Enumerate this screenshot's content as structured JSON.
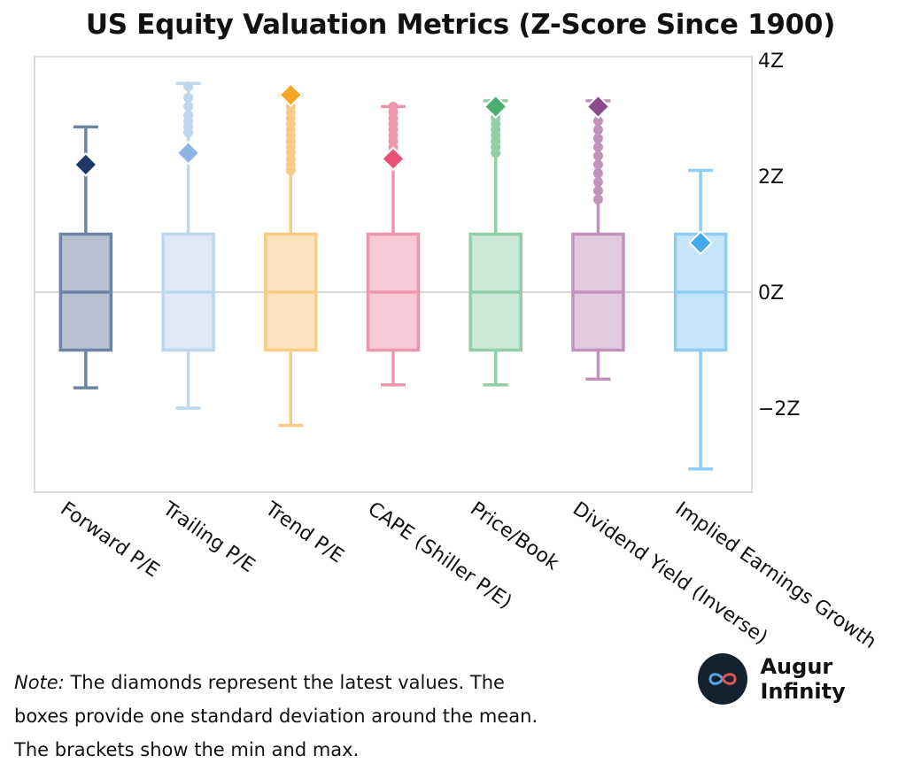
{
  "chart_data": {
    "type": "box",
    "title": "US Equity Valuation Metrics (Z-Score Since 1900)",
    "ylim": [
      -3.5,
      4
    ],
    "y_ticks": [
      4,
      2,
      0,
      -2
    ],
    "y_tick_labels": [
      "4Z",
      "2Z",
      "0Z",
      "−2Z"
    ],
    "grid": false,
    "zero_line": true,
    "series": [
      {
        "name": "Forward P/E",
        "color": "#6d84a4",
        "fill": "#b6c2d2",
        "diamond_color": "#1c3967",
        "q1": -1,
        "median": 0,
        "q3": 1,
        "min": -1.65,
        "max": 2.85,
        "latest": 2.2,
        "outliers": []
      },
      {
        "name": "Trailing P/E",
        "color": "#bcd7ee",
        "fill": "#dde9f6",
        "diamond_color": "#8cb5e3",
        "q1": -1,
        "median": 0,
        "q3": 1,
        "min": -2.0,
        "max": 3.6,
        "latest": 2.4,
        "outliers": [
          2.75,
          2.85,
          2.95,
          3.05,
          3.2,
          3.35,
          3.55
        ]
      },
      {
        "name": "Trend P/E",
        "color": "#f9cb83",
        "fill": "#fce3bf",
        "diamond_color": "#f5a623",
        "q1": -1,
        "median": 0,
        "q3": 1,
        "min": -2.3,
        "max": 3.4,
        "latest": 3.4,
        "outliers": [
          2.1,
          2.2,
          2.3,
          2.4,
          2.5,
          2.6,
          2.7,
          2.8,
          2.9,
          3.0,
          3.1,
          3.2,
          3.3
        ]
      },
      {
        "name": "CAPE (Shiller P/E)",
        "color": "#ef96af",
        "fill": "#f8c9d6",
        "diamond_color": "#e84f74",
        "q1": -1,
        "median": 0,
        "q3": 1,
        "min": -1.6,
        "max": 3.2,
        "latest": 2.3,
        "outliers": [
          2.5,
          2.6,
          2.7,
          2.8,
          2.9,
          3.0,
          3.1,
          3.2
        ]
      },
      {
        "name": "Price/Book",
        "color": "#92cfa8",
        "fill": "#cbe8d5",
        "diamond_color": "#4baf71",
        "q1": -1,
        "median": 0,
        "q3": 1,
        "min": -1.6,
        "max": 3.3,
        "latest": 3.2,
        "outliers": [
          2.4,
          2.5,
          2.6,
          2.7,
          2.8,
          2.9,
          3.0,
          3.1,
          3.2
        ]
      },
      {
        "name": "Dividend Yield (Inverse)",
        "color": "#c192bd",
        "fill": "#e1c9df",
        "diamond_color": "#8e4a8e",
        "q1": -1,
        "median": 0,
        "q3": 1,
        "min": -1.5,
        "max": 3.3,
        "latest": 3.2,
        "outliers": [
          1.6,
          1.75,
          1.9,
          2.05,
          2.2,
          2.35,
          2.5,
          2.65,
          2.8,
          2.95,
          3.1
        ]
      },
      {
        "name": "Implied Earnings Growth",
        "color": "#8fcdf3",
        "fill": "#c7e5f9",
        "diamond_color": "#45a9ef",
        "q1": -1,
        "median": 0,
        "q3": 1,
        "min": -3.05,
        "max": 2.1,
        "latest": 0.85,
        "outliers": []
      }
    ]
  },
  "note": {
    "lead": "Note:",
    "text": " The diamonds represent the latest values. The boxes provide one standard deviation around the mean. The brackets show the min and max."
  },
  "brand": {
    "name": "Augur Infinity",
    "logo_icon": "infinity-icon"
  }
}
